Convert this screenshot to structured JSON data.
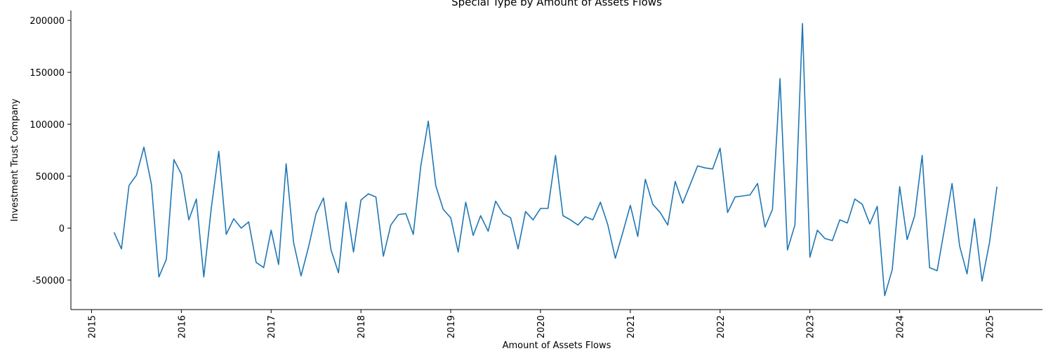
{
  "chart_data": {
    "type": "line",
    "title": "Special Type by Amount of Assets Flows",
    "x_label": "Amount of Assets Flows",
    "y_label": "Investment Trust Company",
    "x": [
      2015.25,
      2015.333,
      2015.417,
      2015.5,
      2015.583,
      2015.667,
      2015.75,
      2015.833,
      2015.917,
      2016.0,
      2016.083,
      2016.167,
      2016.25,
      2016.333,
      2016.417,
      2016.5,
      2016.583,
      2016.667,
      2016.75,
      2016.833,
      2016.917,
      2017.0,
      2017.083,
      2017.167,
      2017.25,
      2017.333,
      2017.417,
      2017.5,
      2017.583,
      2017.667,
      2017.75,
      2017.833,
      2017.917,
      2018.0,
      2018.083,
      2018.167,
      2018.25,
      2018.333,
      2018.417,
      2018.5,
      2018.583,
      2018.667,
      2018.75,
      2018.833,
      2018.917,
      2019.0,
      2019.083,
      2019.167,
      2019.25,
      2019.333,
      2019.417,
      2019.5,
      2019.583,
      2019.667,
      2019.75,
      2019.833,
      2019.917,
      2020.0,
      2020.083,
      2020.167,
      2020.25,
      2020.333,
      2020.417,
      2020.5,
      2020.583,
      2020.667,
      2020.75,
      2020.833,
      2020.917,
      2021.0,
      2021.083,
      2021.167,
      2021.25,
      2021.333,
      2021.417,
      2021.5,
      2021.583,
      2021.667,
      2021.75,
      2021.833,
      2021.917,
      2022.0,
      2022.083,
      2022.167,
      2022.25,
      2022.333,
      2022.417,
      2022.5,
      2022.583,
      2022.667,
      2022.75,
      2022.833,
      2022.917,
      2023.0,
      2023.083,
      2023.167,
      2023.25,
      2023.333,
      2023.417,
      2023.5,
      2023.583,
      2023.667,
      2023.75,
      2023.833,
      2023.917,
      2024.0,
      2024.083,
      2024.167,
      2024.25,
      2024.333,
      2024.417,
      2024.5,
      2024.583,
      2024.667,
      2024.75,
      2024.833,
      2024.917,
      2025.0,
      2025.083
    ],
    "series": [
      {
        "color": "#1f77b4",
        "values": [
          -4000,
          -20000,
          41000,
          51000,
          78000,
          42000,
          -47000,
          -30000,
          66000,
          52000,
          8000,
          28000,
          -47000,
          19000,
          74000,
          -6000,
          9000,
          0,
          6000,
          -33000,
          -38000,
          -2000,
          -35000,
          62000,
          -14000,
          -46000,
          -18000,
          14000,
          29000,
          -21000,
          -43000,
          25000,
          -23000,
          27000,
          33000,
          30000,
          -27000,
          3000,
          13000,
          14000,
          -6000,
          60000,
          103000,
          41000,
          18000,
          10000,
          -23000,
          25000,
          -7000,
          12000,
          -3000,
          26000,
          14000,
          10000,
          -20000,
          16000,
          8000,
          19000,
          19000,
          70000,
          12000,
          8000,
          3000,
          11000,
          8000,
          25000,
          3000,
          -29000,
          -4000,
          22000,
          -8000,
          47000,
          23000,
          15000,
          3000,
          45000,
          24000,
          42000,
          60000,
          58000,
          57000,
          77000,
          15000,
          30000,
          31000,
          32000,
          43000,
          1000,
          18000,
          144000,
          -21000,
          3000,
          197000,
          -28000,
          -2000,
          -10000,
          -12000,
          8000,
          5000,
          28000,
          23000,
          4000,
          21000,
          -65000,
          -40000,
          40000,
          -11000,
          12000,
          70000,
          -38000,
          -41000,
          0,
          43000,
          -17000,
          -44000,
          9000,
          -51000,
          -14000,
          40000
        ]
      }
    ],
    "xlim": [
      2014.77,
      2025.59
    ],
    "xticks": [
      2015,
      2016,
      2017,
      2018,
      2019,
      2020,
      2021,
      2022,
      2023,
      2024,
      2025
    ],
    "ylim": [
      -78400,
      209500
    ],
    "yticks": [
      -50000,
      0,
      50000,
      100000,
      150000,
      200000
    ]
  }
}
